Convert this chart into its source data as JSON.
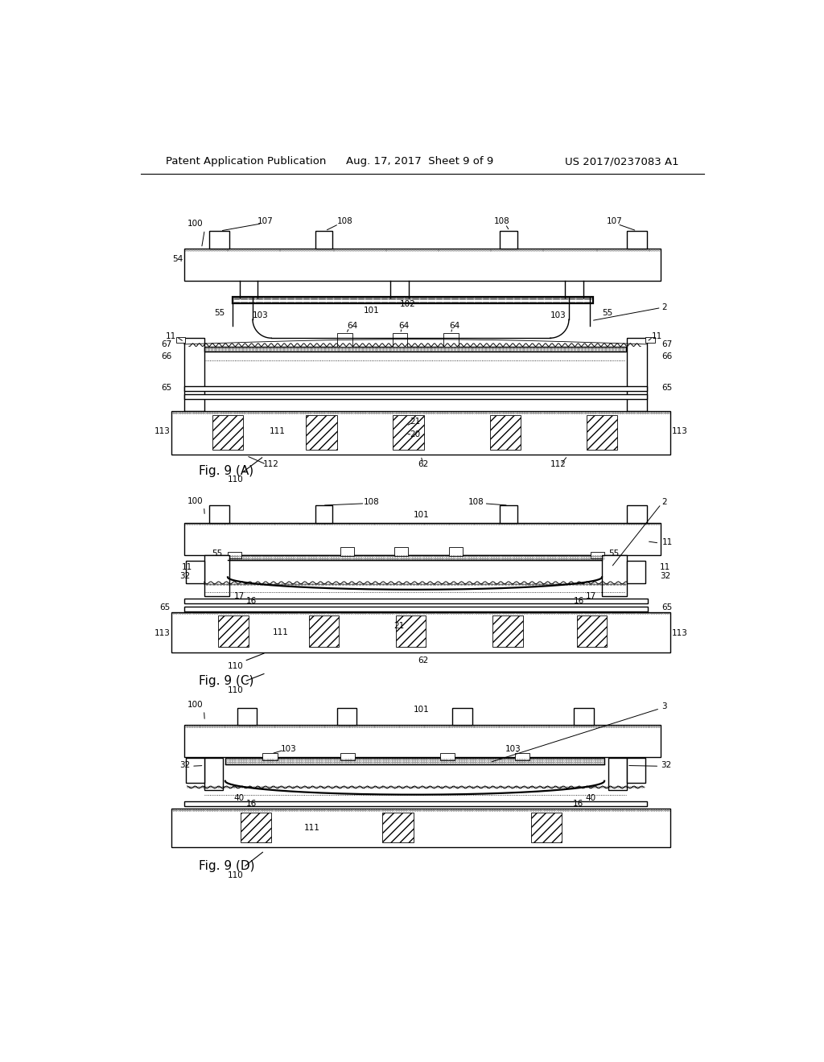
{
  "title_left": "Patent Application Publication",
  "title_mid": "Aug. 17, 2017  Sheet 9 of 9",
  "title_right": "US 2017/0237083 A1",
  "bg_color": "#ffffff",
  "line_color": "#000000"
}
